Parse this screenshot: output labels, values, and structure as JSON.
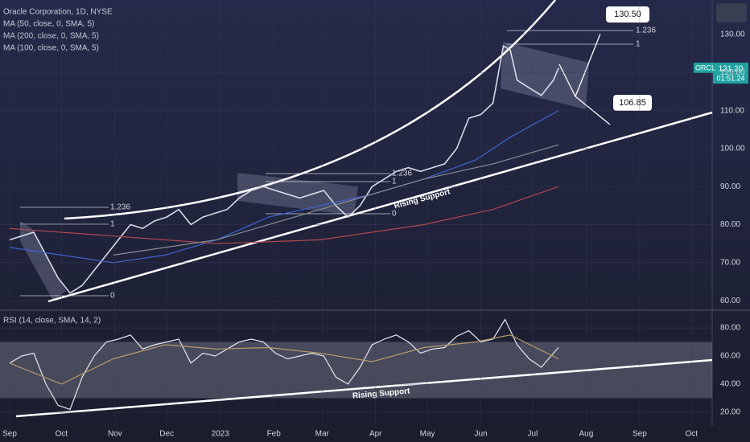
{
  "chart_data": [
    {
      "type": "line",
      "title": "Oracle Corporation, 1D, NYSE",
      "xlim": [
        -5.6,
        407
      ],
      "xticks": [
        {
          "value": 0,
          "label": "Sep"
        },
        {
          "value": 30,
          "label": "Oct"
        },
        {
          "value": 61,
          "label": "Nov"
        },
        {
          "value": 91,
          "label": "Dec"
        },
        {
          "value": 122,
          "label": "2023"
        },
        {
          "value": 153,
          "label": "Feb"
        },
        {
          "value": 181,
          "label": "Mar"
        },
        {
          "value": 212,
          "label": "Apr"
        },
        {
          "value": 242,
          "label": "May"
        },
        {
          "value": 273,
          "label": "Jun"
        },
        {
          "value": 303,
          "label": "Jul"
        },
        {
          "value": 334,
          "label": "Aug"
        },
        {
          "value": 365,
          "label": "Sep"
        },
        {
          "value": 395,
          "label": "Oct"
        }
      ],
      "ylim": [
        57.7,
        139.1
      ],
      "yticks": [
        {
          "value": 60,
          "label": "60.00"
        },
        {
          "value": 70,
          "label": "70.00"
        },
        {
          "value": 80,
          "label": "80.00"
        },
        {
          "value": 90,
          "label": "90.00"
        },
        {
          "value": 100,
          "label": "100.00"
        },
        {
          "value": 110,
          "label": "110.00"
        },
        {
          "value": 120,
          "label": "120.00"
        },
        {
          "value": 130,
          "label": "130.00"
        }
      ],
      "series": [
        {
          "name": "ORCL",
          "color": "#d8dbe6",
          "x": [
            0,
            7,
            14,
            21,
            28,
            35,
            42,
            49,
            56,
            63,
            70,
            77,
            84,
            91,
            98,
            105,
            112,
            119,
            126,
            133,
            140,
            147,
            154,
            161,
            168,
            175,
            182,
            189,
            196,
            203,
            210,
            217,
            224,
            231,
            238,
            245,
            252,
            259,
            266,
            273,
            280,
            286,
            290,
            294,
            301,
            308,
            315,
            318
          ],
          "values": [
            76,
            77,
            78,
            72,
            66,
            62,
            64,
            68,
            72,
            76,
            80,
            79,
            81,
            82,
            84,
            80,
            82,
            83,
            84,
            87,
            89,
            90,
            89,
            88,
            87,
            88,
            89,
            85,
            82,
            85,
            90,
            92,
            94,
            95,
            94,
            95,
            96,
            100,
            108,
            109,
            112,
            127,
            126,
            118,
            116,
            114,
            118,
            121.2
          ]
        },
        {
          "name": "MA (50, close, 0, SMA, 5)",
          "color": "#3f63d6",
          "x": [
            0,
            30,
            60,
            90,
            120,
            150,
            180,
            210,
            240,
            270,
            290,
            318
          ],
          "values": [
            74,
            72,
            70,
            72,
            76,
            82,
            85,
            88,
            92,
            97,
            103,
            110
          ]
        },
        {
          "name": "MA (200, close, 0, SMA, 5)",
          "color": "#b2484f",
          "x": [
            0,
            60,
            120,
            180,
            240,
            280,
            318
          ],
          "values": [
            79,
            77,
            75,
            76,
            80,
            84,
            90
          ]
        },
        {
          "name": "MA (100, close, 0, SMA, 5)",
          "color": "#8a8c95",
          "x": [
            60,
            120,
            180,
            240,
            280,
            318
          ],
          "values": [
            72,
            76,
            84,
            92,
            96,
            101
          ]
        }
      ],
      "annotations": [
        "1.236",
        "1",
        "0",
        "1.236",
        "1",
        "0",
        "Rising Support",
        "1.236",
        "1",
        "130.50",
        "106.85",
        "121.20",
        "01:51:24"
      ]
    },
    {
      "type": "line",
      "title": "RSI (14, close, SMA, 14, 2)",
      "xlim": [
        -5.6,
        407
      ],
      "ylim": [
        10.3,
        90.3
      ],
      "yticks": [
        {
          "value": 20,
          "label": "20.00"
        },
        {
          "value": 40,
          "label": "40.00"
        },
        {
          "value": 60,
          "label": "60.00"
        },
        {
          "value": 80,
          "label": "80.00"
        }
      ],
      "series": [
        {
          "color": "#e6e6ea",
          "x": [
            0,
            7,
            14,
            21,
            28,
            35,
            42,
            49,
            56,
            63,
            70,
            77,
            84,
            91,
            98,
            105,
            112,
            119,
            126,
            133,
            140,
            147,
            154,
            161,
            168,
            175,
            182,
            189,
            196,
            203,
            210,
            217,
            224,
            231,
            238,
            245,
            252,
            259,
            266,
            273,
            280,
            287,
            294,
            301,
            308,
            315,
            318
          ],
          "values": [
            55,
            60,
            62,
            40,
            25,
            22,
            45,
            60,
            70,
            72,
            75,
            65,
            68,
            70,
            72,
            55,
            62,
            60,
            65,
            70,
            72,
            70,
            62,
            58,
            60,
            62,
            60,
            45,
            40,
            52,
            68,
            72,
            75,
            70,
            62,
            65,
            66,
            74,
            78,
            70,
            72,
            86,
            68,
            58,
            52,
            62,
            66
          ]
        },
        {
          "color": "#b89a6a",
          "x": [
            0,
            30,
            60,
            90,
            120,
            150,
            180,
            210,
            240,
            270,
            290,
            318
          ],
          "values": [
            55,
            40,
            58,
            68,
            65,
            66,
            62,
            56,
            66,
            70,
            75,
            58
          ]
        }
      ],
      "annotations": [
        "Rising Support"
      ]
    }
  ]
}
